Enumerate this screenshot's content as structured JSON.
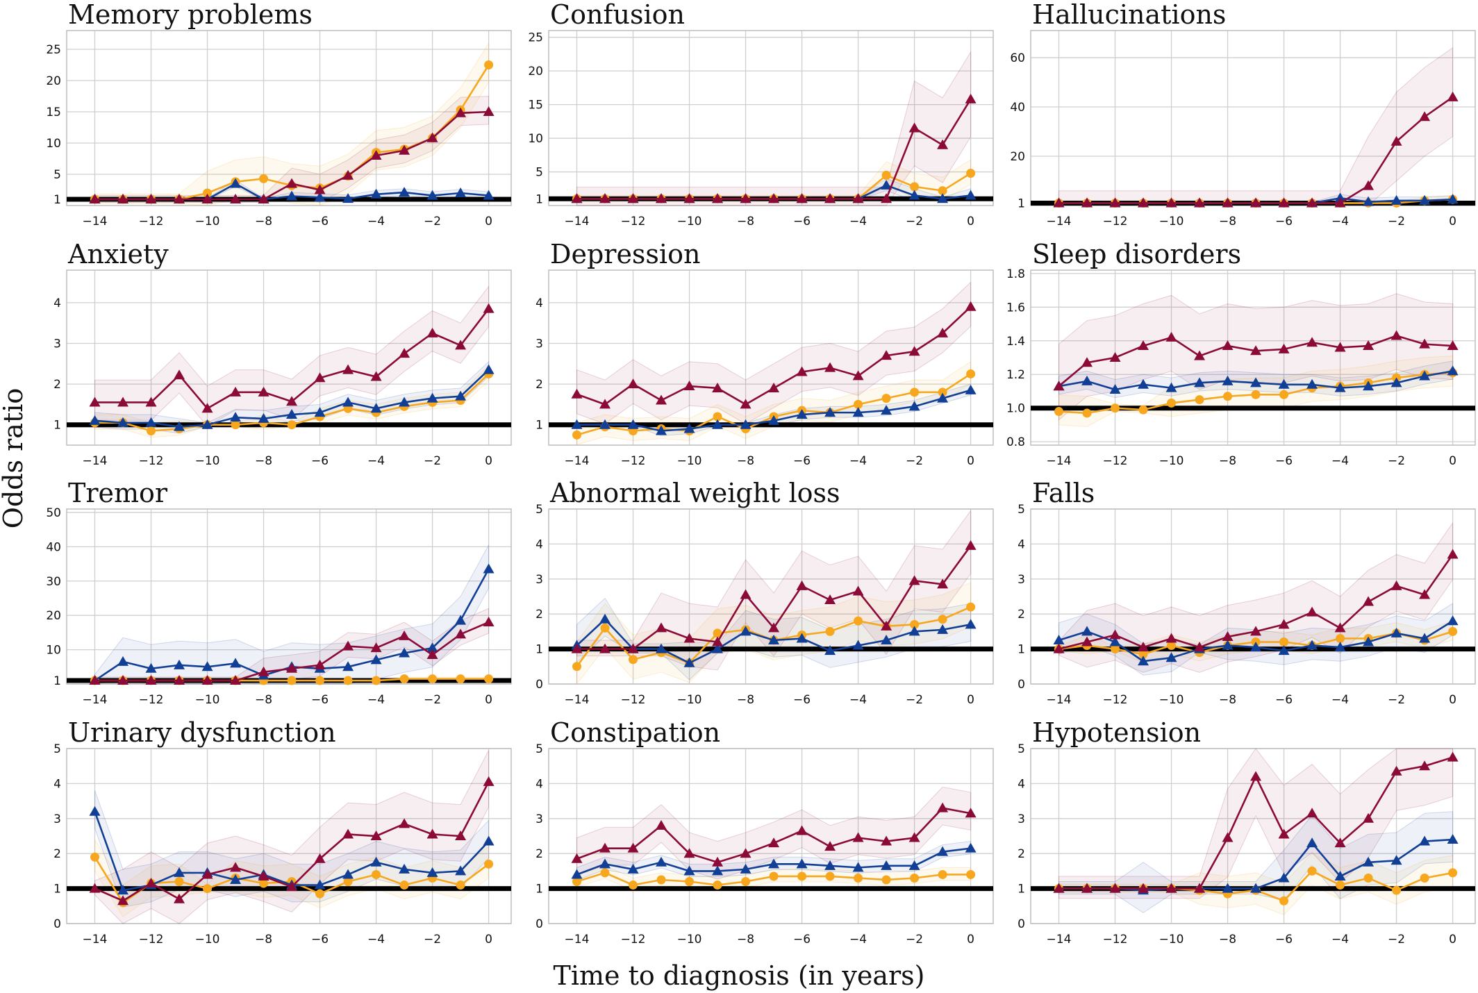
{
  "axis_labels": {
    "x": "Time to diagnosis (in years)",
    "y": "Odds ratio"
  },
  "colors": {
    "red": "#8b0a37",
    "blue": "#123f96",
    "orange": "#f6a71e"
  },
  "chart_data": [
    {
      "title": "Memory problems",
      "type": "line",
      "ylim": [
        0,
        28
      ],
      "yticks": [
        1,
        5,
        10,
        15,
        20,
        25
      ],
      "x": [
        -14,
        -13,
        -12,
        -11,
        -10,
        -9,
        -8,
        -7,
        -6,
        -5,
        -4,
        -3,
        -2,
        -1,
        0
      ],
      "series": [
        {
          "color": "red",
          "marker": "triangle",
          "values": [
            1,
            1,
            1,
            1,
            1,
            1,
            1,
            3.5,
            2.5,
            4.8,
            8,
            8.8,
            10.8,
            14.8,
            15
          ],
          "band": 2.5
        },
        {
          "color": "blue",
          "marker": "triangle",
          "values": [
            1,
            1,
            1,
            1,
            1,
            3.5,
            1,
            1.5,
            1.3,
            1.1,
            1.8,
            2.1,
            1.6,
            2,
            1.6
          ],
          "band": 0.6
        },
        {
          "color": "orange",
          "marker": "circle",
          "values": [
            1,
            1,
            1,
            1,
            2,
            3.8,
            4.3,
            3.2,
            2.8,
            4.7,
            8.5,
            9,
            10.8,
            15.3,
            22.5
          ],
          "band": 3.5
        }
      ]
    },
    {
      "title": "Confusion",
      "type": "line",
      "ylim": [
        0,
        26
      ],
      "yticks": [
        1,
        5,
        10,
        15,
        20,
        25
      ],
      "x": [
        -14,
        -13,
        -12,
        -11,
        -10,
        -9,
        -8,
        -7,
        -6,
        -5,
        -4,
        -3,
        -2,
        -1,
        0
      ],
      "series": [
        {
          "color": "red",
          "marker": "triangle",
          "values": [
            1,
            1,
            1,
            1,
            1,
            1,
            1,
            1,
            1,
            1,
            1,
            1,
            11.5,
            9,
            15.8
          ],
          "band": 7
        },
        {
          "color": "blue",
          "marker": "triangle",
          "values": [
            1,
            1,
            1,
            1,
            1,
            1,
            1,
            1,
            1,
            1,
            1,
            3,
            1.5,
            1,
            1.5
          ],
          "band": 1
        },
        {
          "color": "orange",
          "marker": "circle",
          "values": [
            1,
            1,
            1,
            1,
            1,
            1,
            1,
            1,
            1,
            1,
            1,
            4.5,
            2.8,
            2.2,
            4.8
          ],
          "band": 2
        }
      ]
    },
    {
      "title": "Hallucinations",
      "type": "line",
      "ylim": [
        0,
        71
      ],
      "yticks": [
        1,
        20,
        40,
        60
      ],
      "x": [
        -14,
        -13,
        -12,
        -11,
        -10,
        -9,
        -8,
        -7,
        -6,
        -5,
        -4,
        -3,
        -2,
        -1,
        0
      ],
      "series": [
        {
          "color": "red",
          "marker": "triangle",
          "values": [
            1,
            1,
            1,
            1,
            1,
            1,
            1,
            1,
            1,
            1,
            1,
            8,
            26,
            36,
            44
          ],
          "band": 20
        },
        {
          "color": "blue",
          "marker": "triangle",
          "values": [
            1,
            1,
            1,
            1,
            1,
            1,
            1,
            1,
            1,
            1,
            3,
            1.5,
            2,
            2,
            2.5
          ],
          "band": 1.5
        },
        {
          "color": "orange",
          "marker": "circle",
          "values": [
            1,
            1,
            1,
            1,
            1,
            1,
            1,
            1,
            1,
            1,
            1,
            1,
            1,
            2,
            2.5
          ],
          "band": 1.5
        }
      ]
    },
    {
      "title": "Anxiety",
      "type": "line",
      "ylim": [
        0.5,
        4.8
      ],
      "yticks": [
        1,
        2,
        3,
        4
      ],
      "x": [
        -14,
        -13,
        -12,
        -11,
        -10,
        -9,
        -8,
        -7,
        -6,
        -5,
        -4,
        -3,
        -2,
        -1,
        0
      ],
      "series": [
        {
          "color": "red",
          "marker": "triangle",
          "values": [
            1.55,
            1.55,
            1.55,
            2.22,
            1.4,
            1.8,
            1.8,
            1.57,
            2.15,
            2.35,
            2.18,
            2.75,
            3.25,
            2.95,
            3.85
          ],
          "band": 0.55
        },
        {
          "color": "blue",
          "marker": "triangle",
          "values": [
            1.1,
            1.05,
            1.05,
            0.95,
            1.0,
            1.18,
            1.15,
            1.25,
            1.3,
            1.55,
            1.4,
            1.55,
            1.65,
            1.7,
            2.35
          ],
          "band": 0.2
        },
        {
          "color": "orange",
          "marker": "circle",
          "values": [
            1.05,
            1.05,
            0.85,
            0.9,
            1.0,
            1.0,
            1.05,
            1.0,
            1.2,
            1.4,
            1.3,
            1.45,
            1.55,
            1.6,
            2.25
          ],
          "band": 0.2
        }
      ]
    },
    {
      "title": "Depression",
      "type": "line",
      "ylim": [
        0.5,
        4.8
      ],
      "yticks": [
        1,
        2,
        3,
        4
      ],
      "x": [
        -14,
        -13,
        -12,
        -11,
        -10,
        -9,
        -8,
        -7,
        -6,
        -5,
        -4,
        -3,
        -2,
        -1,
        0
      ],
      "series": [
        {
          "color": "red",
          "marker": "triangle",
          "values": [
            1.75,
            1.5,
            2.0,
            1.6,
            1.95,
            1.9,
            1.5,
            1.9,
            2.3,
            2.4,
            2.2,
            2.7,
            2.8,
            3.25,
            3.9
          ],
          "band": 0.6
        },
        {
          "color": "blue",
          "marker": "triangle",
          "values": [
            1.0,
            1.0,
            1.0,
            0.85,
            0.9,
            1.0,
            1.0,
            1.1,
            1.25,
            1.3,
            1.3,
            1.35,
            1.45,
            1.65,
            1.85
          ],
          "band": 0.15
        },
        {
          "color": "orange",
          "marker": "circle",
          "values": [
            0.75,
            0.95,
            0.85,
            0.9,
            0.85,
            1.2,
            0.9,
            1.2,
            1.35,
            1.3,
            1.5,
            1.65,
            1.8,
            1.8,
            2.25
          ],
          "band": 0.3
        }
      ]
    },
    {
      "title": "Sleep disorders",
      "type": "line",
      "ylim": [
        0.78,
        1.82
      ],
      "yticks": [
        0.8,
        1.0,
        1.2,
        1.4,
        1.6,
        1.8
      ],
      "x": [
        -14,
        -13,
        -12,
        -11,
        -10,
        -9,
        -8,
        -7,
        -6,
        -5,
        -4,
        -3,
        -2,
        -1,
        0
      ],
      "series": [
        {
          "color": "red",
          "marker": "triangle",
          "values": [
            1.13,
            1.27,
            1.3,
            1.37,
            1.42,
            1.31,
            1.37,
            1.34,
            1.35,
            1.39,
            1.36,
            1.37,
            1.43,
            1.38,
            1.37
          ],
          "band": 0.25
        },
        {
          "color": "blue",
          "marker": "triangle",
          "values": [
            1.13,
            1.16,
            1.11,
            1.14,
            1.12,
            1.15,
            1.16,
            1.15,
            1.14,
            1.14,
            1.12,
            1.13,
            1.15,
            1.19,
            1.22
          ],
          "band": 0.06
        },
        {
          "color": "orange",
          "marker": "circle",
          "values": [
            0.98,
            0.97,
            1.0,
            0.99,
            1.03,
            1.05,
            1.07,
            1.08,
            1.08,
            1.12,
            1.13,
            1.15,
            1.18,
            1.2,
            1.21
          ],
          "band": 0.1
        }
      ]
    },
    {
      "title": "Tremor",
      "type": "line",
      "ylim": [
        0,
        51
      ],
      "yticks": [
        1,
        10,
        20,
        30,
        40,
        50
      ],
      "x": [
        -14,
        -13,
        -12,
        -11,
        -10,
        -9,
        -8,
        -7,
        -6,
        -5,
        -4,
        -3,
        -2,
        -1,
        0
      ],
      "series": [
        {
          "color": "red",
          "marker": "triangle",
          "values": [
            1,
            1,
            1,
            1,
            1,
            1,
            3.5,
            4.5,
            5.5,
            11,
            10.5,
            14,
            8.5,
            14.5,
            18
          ],
          "band": 4
        },
        {
          "color": "blue",
          "marker": "triangle",
          "values": [
            1,
            6.5,
            4.5,
            5.5,
            5,
            6,
            2.5,
            5,
            4.5,
            5,
            7,
            9,
            10.5,
            18.5,
            33.5
          ],
          "band": 7
        },
        {
          "color": "orange",
          "marker": "circle",
          "values": [
            1,
            1,
            1,
            1,
            1,
            1,
            1,
            1,
            1,
            1,
            1,
            1.5,
            1.5,
            1.5,
            1.5
          ],
          "band": 0.5
        }
      ]
    },
    {
      "title": "Abnormal weight loss",
      "type": "line",
      "ylim": [
        0,
        5
      ],
      "yticks": [
        0,
        1,
        2,
        3,
        4,
        5
      ],
      "x": [
        -14,
        -13,
        -12,
        -11,
        -10,
        -9,
        -8,
        -7,
        -6,
        -5,
        -4,
        -3,
        -2,
        -1,
        0
      ],
      "series": [
        {
          "color": "red",
          "marker": "triangle",
          "values": [
            1.0,
            1.0,
            1.0,
            1.6,
            1.3,
            1.2,
            2.55,
            1.6,
            2.8,
            2.4,
            2.65,
            1.65,
            2.95,
            2.85,
            3.95
          ],
          "band": 1.0
        },
        {
          "color": "blue",
          "marker": "triangle",
          "values": [
            1.1,
            1.85,
            1.0,
            1.0,
            0.6,
            1.0,
            1.5,
            1.25,
            1.3,
            0.95,
            1.1,
            1.25,
            1.5,
            1.55,
            1.7
          ],
          "band": 0.6
        },
        {
          "color": "orange",
          "marker": "circle",
          "values": [
            0.5,
            1.6,
            0.7,
            0.9,
            0.6,
            1.45,
            1.55,
            1.25,
            1.4,
            1.5,
            1.8,
            1.65,
            1.7,
            1.85,
            2.2
          ],
          "band": 0.7
        }
      ]
    },
    {
      "title": "Falls",
      "type": "line",
      "ylim": [
        0,
        5
      ],
      "yticks": [
        0,
        1,
        2,
        3,
        4,
        5
      ],
      "x": [
        -14,
        -13,
        -12,
        -11,
        -10,
        -9,
        -8,
        -7,
        -6,
        -5,
        -4,
        -3,
        -2,
        -1,
        0
      ],
      "series": [
        {
          "color": "red",
          "marker": "triangle",
          "values": [
            1.0,
            1.2,
            1.4,
            1.05,
            1.3,
            1.05,
            1.35,
            1.5,
            1.7,
            2.05,
            1.6,
            2.35,
            2.8,
            2.55,
            3.7
          ],
          "band": 0.9
        },
        {
          "color": "blue",
          "marker": "triangle",
          "values": [
            1.25,
            1.5,
            1.2,
            0.65,
            0.75,
            1.0,
            1.1,
            1.05,
            0.95,
            1.1,
            1.05,
            1.2,
            1.45,
            1.3,
            1.8
          ],
          "band": 0.5
        },
        {
          "color": "orange",
          "marker": "circle",
          "values": [
            1.0,
            1.1,
            1.0,
            0.85,
            1.1,
            0.9,
            1.1,
            1.2,
            1.2,
            1.1,
            1.3,
            1.3,
            1.45,
            1.25,
            1.5
          ],
          "band": 0.3
        }
      ]
    },
    {
      "title": "Urinary dysfunction",
      "type": "line",
      "ylim": [
        0,
        5
      ],
      "yticks": [
        0,
        1,
        2,
        3,
        4,
        5
      ],
      "x": [
        -14,
        -13,
        -12,
        -11,
        -10,
        -9,
        -8,
        -7,
        -6,
        -5,
        -4,
        -3,
        -2,
        -1,
        0
      ],
      "series": [
        {
          "color": "red",
          "marker": "triangle",
          "values": [
            1.0,
            0.65,
            1.15,
            0.7,
            1.4,
            1.6,
            1.35,
            1.05,
            1.85,
            2.55,
            2.5,
            2.85,
            2.55,
            2.5,
            4.05
          ],
          "band": 0.9
        },
        {
          "color": "blue",
          "marker": "triangle",
          "values": [
            3.2,
            0.95,
            1.1,
            1.45,
            1.45,
            1.25,
            1.4,
            1.1,
            1.1,
            1.4,
            1.75,
            1.55,
            1.45,
            1.5,
            2.35
          ],
          "band": 0.6
        },
        {
          "color": "orange",
          "marker": "circle",
          "values": [
            1.9,
            0.6,
            1.15,
            1.2,
            1.0,
            1.3,
            1.15,
            1.2,
            0.85,
            1.2,
            1.4,
            1.1,
            1.3,
            1.1,
            1.7
          ],
          "band": 0.5
        }
      ]
    },
    {
      "title": "Constipation",
      "type": "line",
      "ylim": [
        0,
        5
      ],
      "yticks": [
        0,
        1,
        2,
        3,
        4,
        5
      ],
      "x": [
        -14,
        -13,
        -12,
        -11,
        -10,
        -9,
        -8,
        -7,
        -6,
        -5,
        -4,
        -3,
        -2,
        -1,
        0
      ],
      "series": [
        {
          "color": "red",
          "marker": "triangle",
          "values": [
            1.85,
            2.15,
            2.15,
            2.8,
            2.0,
            1.75,
            2.0,
            2.3,
            2.65,
            2.2,
            2.45,
            2.35,
            2.45,
            3.3,
            3.15
          ],
          "band": 0.6
        },
        {
          "color": "blue",
          "marker": "triangle",
          "values": [
            1.4,
            1.7,
            1.55,
            1.75,
            1.5,
            1.5,
            1.55,
            1.7,
            1.7,
            1.65,
            1.6,
            1.65,
            1.65,
            2.05,
            2.15
          ],
          "band": 0.2
        },
        {
          "color": "orange",
          "marker": "circle",
          "values": [
            1.2,
            1.45,
            1.1,
            1.25,
            1.2,
            1.1,
            1.2,
            1.35,
            1.35,
            1.35,
            1.3,
            1.25,
            1.3,
            1.4,
            1.4
          ],
          "band": 0.2
        }
      ]
    },
    {
      "title": "Hypotension",
      "type": "line",
      "ylim": [
        0,
        5
      ],
      "yticks": [
        0,
        1,
        2,
        3,
        4,
        5
      ],
      "x": [
        -14,
        -13,
        -12,
        -11,
        -10,
        -9,
        -8,
        -7,
        -6,
        -5,
        -4,
        -3,
        -2,
        -1,
        0
      ],
      "series": [
        {
          "color": "red",
          "marker": "triangle",
          "values": [
            1,
            1,
            1,
            1,
            1,
            1,
            2.45,
            4.2,
            2.55,
            3.15,
            2.3,
            3.0,
            4.35,
            4.5,
            4.75
          ],
          "band": 1.4
        },
        {
          "color": "blue",
          "marker": "triangle",
          "values": [
            1,
            1,
            1,
            0.95,
            1.0,
            1.0,
            1.0,
            1.0,
            1.3,
            2.3,
            1.35,
            1.75,
            1.8,
            2.35,
            2.4
          ],
          "band": 0.8
        },
        {
          "color": "orange",
          "marker": "circle",
          "values": [
            1,
            1,
            1,
            1.0,
            1.0,
            0.95,
            0.85,
            0.95,
            0.65,
            1.5,
            1.1,
            1.3,
            0.95,
            1.3,
            1.45
          ],
          "band": 0.5
        }
      ]
    }
  ]
}
